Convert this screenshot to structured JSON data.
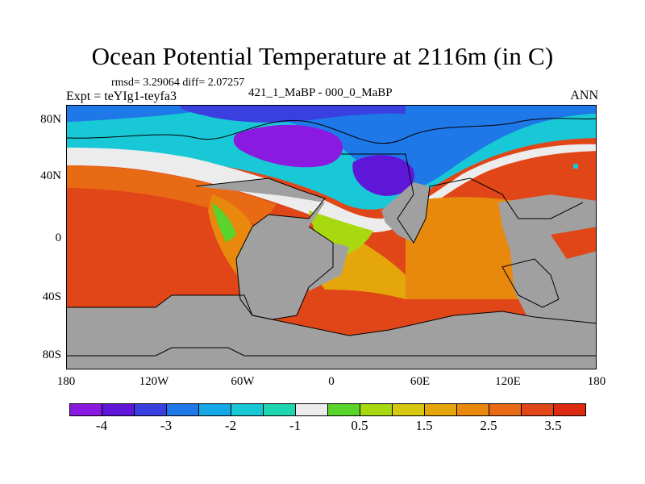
{
  "title": "Ocean Potential Temperature at 2116m (in C)",
  "stats_text": "rmsd= 3.29064 diff= 2.07257",
  "experiment_label": "Expt = teYIg1-teyfa3",
  "experiment_ids": "421_1_MaBP - 000_0_MaBP",
  "season": "ANN",
  "map": {
    "land_color": "#a0a0a0",
    "lat_labels": [
      "80N",
      "40N",
      "0",
      "40S",
      "80S"
    ],
    "lon_labels": [
      "180",
      "120W",
      "60W",
      "0",
      "60E",
      "120E",
      "180"
    ]
  },
  "colorbar": {
    "colors": [
      "#8a1ae0",
      "#5e17d8",
      "#3a3fe0",
      "#1f78e8",
      "#14a8e6",
      "#19c8d6",
      "#1ed6b0",
      "#ececec",
      "#58d42a",
      "#a8d810",
      "#d6c80e",
      "#e4a60a",
      "#e8880c",
      "#e86a14",
      "#e04618",
      "#dc2a10"
    ],
    "labels": [
      "-4",
      "-3",
      "-2",
      "-1",
      "0.5",
      "1.5",
      "2.5",
      "3.5"
    ]
  }
}
